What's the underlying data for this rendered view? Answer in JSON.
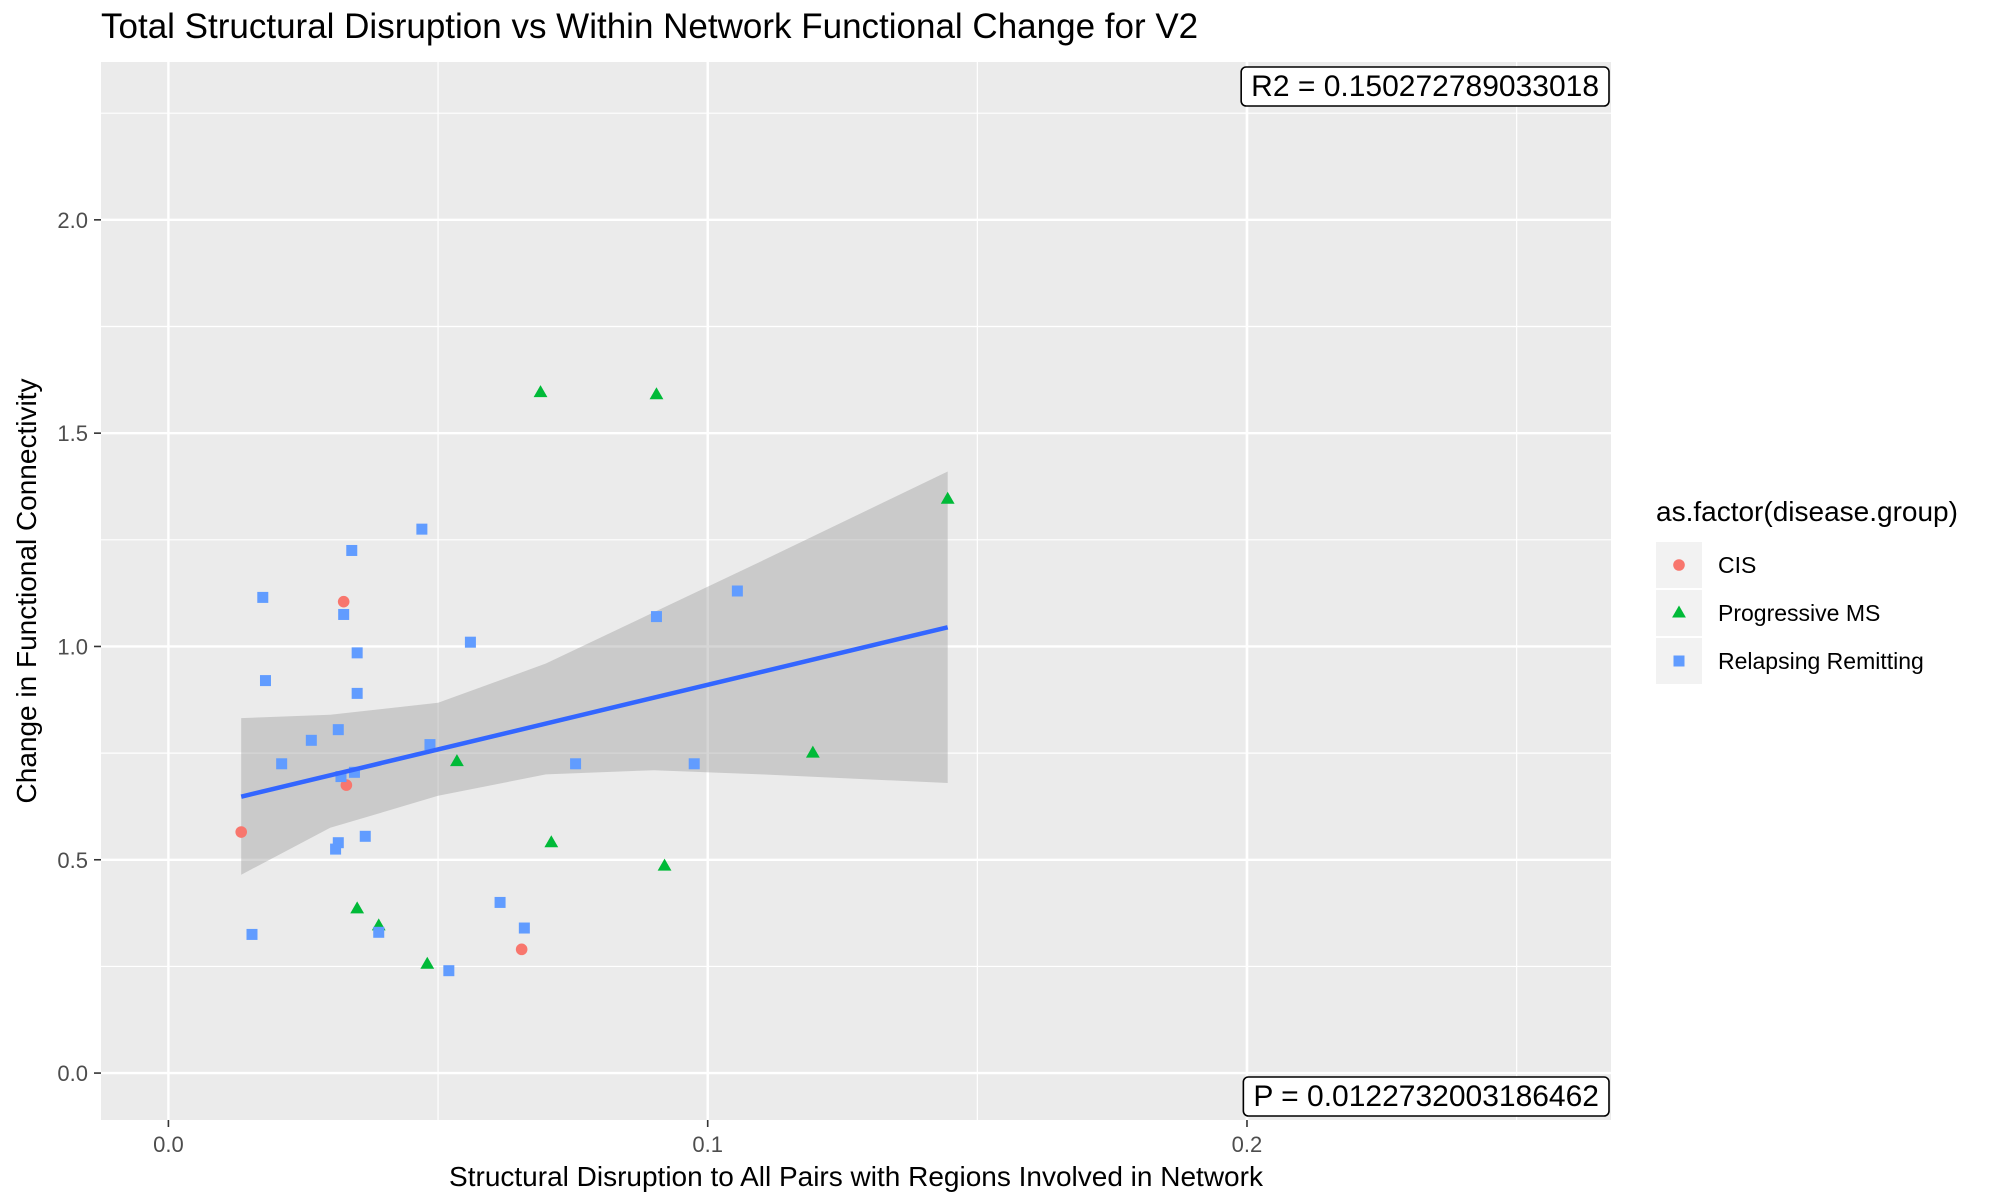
{
  "chart_data": {
    "type": "scatter",
    "title": "Total Structural Disruption vs Within Network Functional Change for V2",
    "xlabel": "Structural Disruption to All Pairs with Regions Involved in Network",
    "ylabel": "Change in Functional Connectivity",
    "xlim": [
      -0.0125,
      0.2675
    ],
    "ylim": [
      -0.11,
      2.37
    ],
    "x_ticks": [
      0.0,
      0.1,
      0.2
    ],
    "x_tick_labels": [
      "0.0",
      "0.1",
      "0.2"
    ],
    "y_ticks": [
      0.0,
      0.5,
      1.0,
      1.5,
      2.0
    ],
    "y_tick_labels": [
      "0.0",
      "0.5",
      "1.0",
      "1.5",
      "2.0"
    ],
    "grid": true,
    "legend": {
      "title": "as.factor(disease.group)",
      "placement": "right"
    },
    "series": [
      {
        "name": "CIS",
        "shape": "circle",
        "color": "#F8766D",
        "points": [
          [
            0.0135,
            0.565
          ],
          [
            0.0325,
            1.105
          ],
          [
            0.033,
            0.675
          ],
          [
            0.0655,
            0.29
          ]
        ]
      },
      {
        "name": "Progressive MS",
        "shape": "triangle",
        "color": "#00BA38",
        "points": [
          [
            0.069,
            1.595
          ],
          [
            0.0905,
            1.59
          ],
          [
            0.1445,
            1.345
          ],
          [
            0.0535,
            0.73
          ],
          [
            0.1195,
            0.75
          ],
          [
            0.071,
            0.54
          ],
          [
            0.092,
            0.485
          ],
          [
            0.035,
            0.385
          ],
          [
            0.039,
            0.345
          ],
          [
            0.048,
            0.255
          ]
        ]
      },
      {
        "name": "Relapsing Remitting",
        "shape": "square",
        "color": "#619CFF",
        "points": [
          [
            0.047,
            1.275
          ],
          [
            0.034,
            1.225
          ],
          [
            0.0175,
            1.115
          ],
          [
            0.0325,
            1.075
          ],
          [
            0.1055,
            1.13
          ],
          [
            0.0905,
            1.07
          ],
          [
            0.056,
            1.01
          ],
          [
            0.035,
            0.985
          ],
          [
            0.018,
            0.92
          ],
          [
            0.035,
            0.89
          ],
          [
            0.0315,
            0.805
          ],
          [
            0.0265,
            0.78
          ],
          [
            0.0485,
            0.77
          ],
          [
            0.021,
            0.725
          ],
          [
            0.0755,
            0.725
          ],
          [
            0.0975,
            0.725
          ],
          [
            0.0345,
            0.705
          ],
          [
            0.032,
            0.695
          ],
          [
            0.0365,
            0.555
          ],
          [
            0.0315,
            0.54
          ],
          [
            0.031,
            0.525
          ],
          [
            0.0615,
            0.4
          ],
          [
            0.066,
            0.34
          ],
          [
            0.039,
            0.33
          ],
          [
            0.0155,
            0.325
          ],
          [
            0.052,
            0.24
          ]
        ]
      }
    ],
    "fit_line": {
      "color": "#3366FF",
      "points": [
        [
          0.0135,
          0.648
        ],
        [
          0.1445,
          1.045
        ]
      ],
      "ci_band": {
        "color": "#999999",
        "x": [
          0.0135,
          0.03,
          0.05,
          0.07,
          0.09,
          0.11,
          0.1445
        ],
        "upper": [
          0.832,
          0.84,
          0.868,
          0.96,
          1.08,
          1.2,
          1.41
        ],
        "lower": [
          0.465,
          0.575,
          0.65,
          0.7,
          0.71,
          0.7,
          0.68
        ]
      }
    },
    "annotations": [
      {
        "text": "R2 =  0.150272789033018",
        "position": "top-right"
      },
      {
        "text": "P =  0.0122732003186462",
        "position": "bottom-right"
      }
    ]
  }
}
